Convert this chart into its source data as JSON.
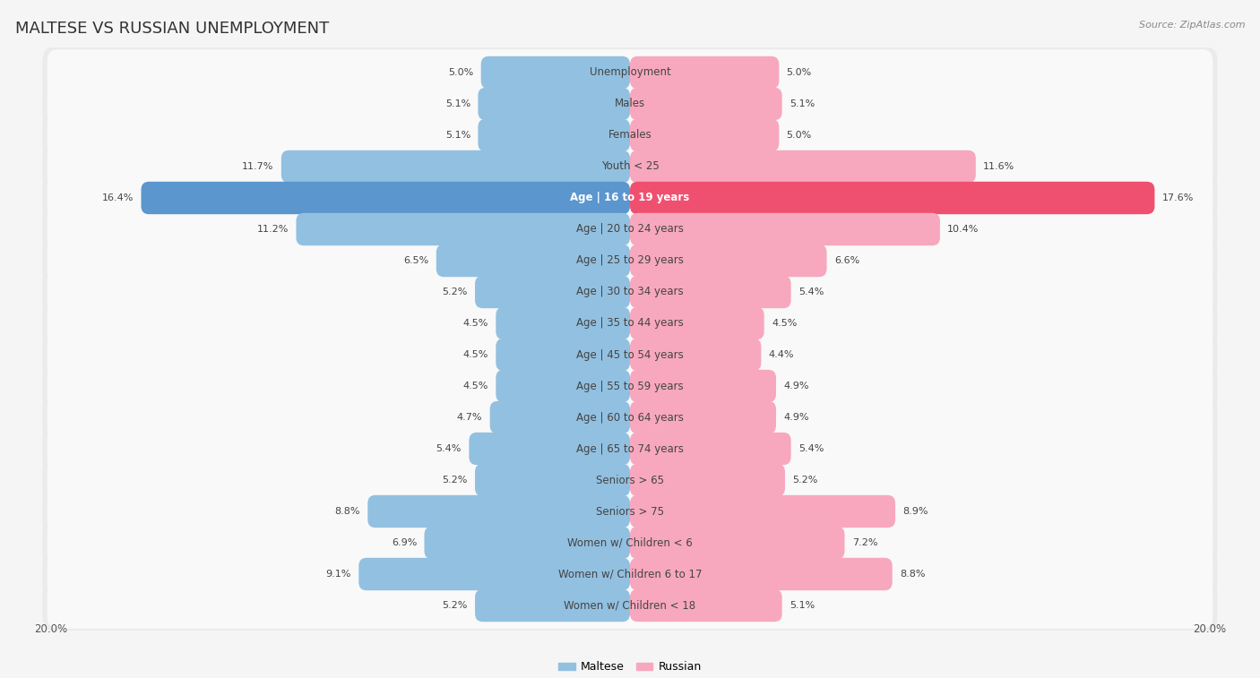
{
  "title": "MALTESE VS RUSSIAN UNEMPLOYMENT",
  "source": "Source: ZipAtlas.com",
  "categories": [
    "Unemployment",
    "Males",
    "Females",
    "Youth < 25",
    "Age | 16 to 19 years",
    "Age | 20 to 24 years",
    "Age | 25 to 29 years",
    "Age | 30 to 34 years",
    "Age | 35 to 44 years",
    "Age | 45 to 54 years",
    "Age | 55 to 59 years",
    "Age | 60 to 64 years",
    "Age | 65 to 74 years",
    "Seniors > 65",
    "Seniors > 75",
    "Women w/ Children < 6",
    "Women w/ Children 6 to 17",
    "Women w/ Children < 18"
  ],
  "maltese": [
    5.0,
    5.1,
    5.1,
    11.7,
    16.4,
    11.2,
    6.5,
    5.2,
    4.5,
    4.5,
    4.5,
    4.7,
    5.4,
    5.2,
    8.8,
    6.9,
    9.1,
    5.2
  ],
  "russian": [
    5.0,
    5.1,
    5.0,
    11.6,
    17.6,
    10.4,
    6.6,
    5.4,
    4.5,
    4.4,
    4.9,
    4.9,
    5.4,
    5.2,
    8.9,
    7.2,
    8.8,
    5.1
  ],
  "maltese_color": "#92c0e0",
  "russian_color": "#f7a8be",
  "highlight_maltese_color": "#5b96ce",
  "highlight_russian_color": "#f05070",
  "background_color": "#f5f5f5",
  "row_bg_color": "#ebebeb",
  "row_inner_color": "#f9f9f9",
  "axis_max": 20.0,
  "legend_maltese": "Maltese",
  "legend_russian": "Russian",
  "title_fontsize": 13,
  "label_fontsize": 8.5,
  "value_fontsize": 8.0
}
